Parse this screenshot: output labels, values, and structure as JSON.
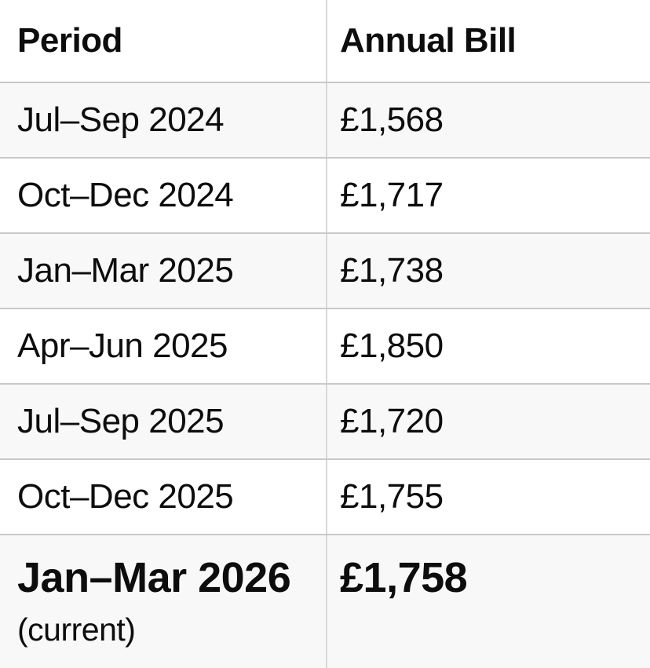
{
  "table": {
    "columns": [
      "Period",
      "Annual Bill"
    ],
    "rows": [
      {
        "period": "Jul–Sep 2024",
        "bill": "£1,568"
      },
      {
        "period": "Oct–Dec 2024",
        "bill": "£1,717"
      },
      {
        "period": "Jan–Mar 2025",
        "bill": "£1,738"
      },
      {
        "period": "Apr–Jun 2025",
        "bill": "£1,850"
      },
      {
        "period": "Jul–Sep 2025",
        "bill": "£1,720"
      },
      {
        "period": "Oct–Dec 2025",
        "bill": "£1,755"
      },
      {
        "period": "Jan–Mar 2026",
        "note": "(current)",
        "bill": "£1,758"
      }
    ],
    "colors": {
      "text": "#0d0d0d",
      "row_shaded_bg": "#f8f8f8",
      "row_white_bg": "#ffffff",
      "horizontal_separator": "#c9c9cb",
      "vertical_divider": "#d8d8da"
    }
  },
  "chart_data": {
    "type": "table",
    "title": "",
    "columns": [
      "Period",
      "Annual Bill"
    ],
    "categories": [
      "Jul–Sep 2024",
      "Oct–Dec 2024",
      "Jan–Mar 2025",
      "Apr–Jun 2025",
      "Jul–Sep 2025",
      "Oct–Dec 2025",
      "Jan–Mar 2026 (current)"
    ],
    "values": [
      1568,
      1717,
      1738,
      1850,
      1720,
      1755,
      1758
    ],
    "unit": "GBP",
    "currency_symbol": "£",
    "current_period": "Jan–Mar 2026",
    "layout": "two-column table, alternating shaded rows, current period emphasized bold"
  }
}
